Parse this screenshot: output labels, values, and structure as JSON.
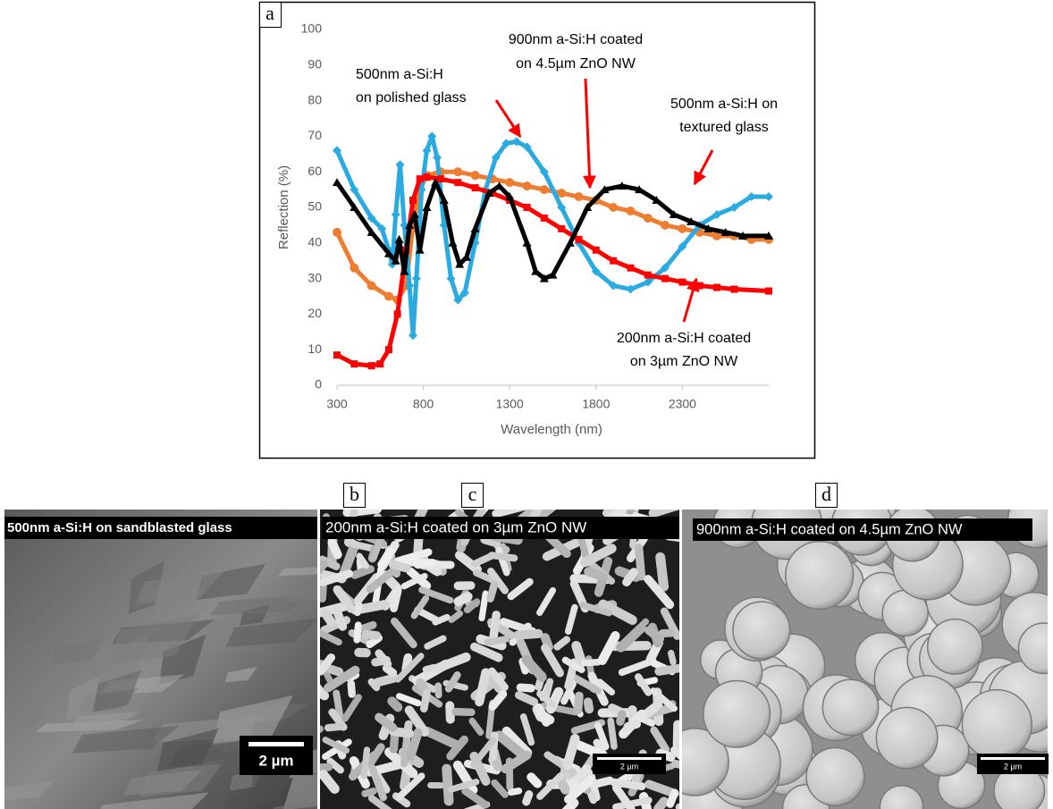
{
  "chart_data": {
    "type": "line",
    "panel_label": "a",
    "x_label": "Wavelength (nm)",
    "y_label": "Reflection (%)",
    "xlim": [
      300,
      2800
    ],
    "xticks": [
      300,
      800,
      1300,
      1800,
      2300
    ],
    "ylim": [
      0,
      100
    ],
    "yticks": [
      0,
      10,
      20,
      30,
      40,
      50,
      60,
      70,
      80,
      90,
      100
    ],
    "grid": false,
    "series": [
      {
        "color": "#ed7d31",
        "marker": "circle",
        "x": [
          300,
          400,
          500,
          600,
          650,
          700,
          740,
          780,
          820,
          900,
          1000,
          1100,
          1200,
          1300,
          1400,
          1500,
          1600,
          1700,
          1800,
          1900,
          2000,
          2100,
          2200,
          2300,
          2400,
          2500,
          2600,
          2700,
          2800
        ],
        "values": [
          43,
          33,
          28,
          25,
          24,
          28,
          45,
          55,
          59,
          60,
          60,
          59,
          58,
          57,
          56,
          55,
          54,
          53,
          52,
          50,
          49,
          47,
          45,
          44,
          43,
          42,
          42,
          41,
          41
        ]
      },
      {
        "color": "#29abe2",
        "marker": "diamond",
        "x": [
          300,
          400,
          500,
          560,
          600,
          620,
          640,
          665,
          690,
          720,
          740,
          760,
          790,
          820,
          850,
          880,
          920,
          960,
          1000,
          1040,
          1100,
          1160,
          1220,
          1280,
          1340,
          1400,
          1500,
          1600,
          1700,
          1800,
          1900,
          2000,
          2100,
          2200,
          2300,
          2400,
          2500,
          2600,
          2700,
          2800
        ],
        "values": [
          66,
          55,
          47,
          44,
          38,
          34,
          48,
          62,
          45,
          28,
          14,
          30,
          55,
          66,
          70,
          64,
          45,
          30,
          24,
          26,
          40,
          55,
          64,
          68,
          68.5,
          67,
          60,
          50,
          40,
          32,
          28,
          27,
          29,
          33,
          39,
          45,
          48,
          50,
          53,
          53
        ]
      },
      {
        "color": "#ff0000",
        "marker": "square",
        "x": [
          300,
          400,
          500,
          550,
          600,
          650,
          700,
          740,
          780,
          820,
          900,
          1000,
          1100,
          1200,
          1300,
          1400,
          1500,
          1600,
          1700,
          1800,
          1900,
          2000,
          2100,
          2200,
          2300,
          2400,
          2500,
          2600,
          2800
        ],
        "values": [
          8.5,
          6,
          5.5,
          6,
          10,
          20,
          38,
          52,
          58,
          58.5,
          58,
          57,
          55.5,
          54,
          52,
          50,
          47,
          44,
          41,
          38,
          35,
          33,
          31,
          30,
          29,
          28,
          27.5,
          27,
          26.5
        ]
      },
      {
        "color": "#000000",
        "marker": "triangle",
        "x": [
          300,
          400,
          500,
          600,
          640,
          660,
          690,
          720,
          750,
          780,
          820,
          870,
          920,
          970,
          1010,
          1050,
          1100,
          1180,
          1240,
          1300,
          1400,
          1450,
          1500,
          1550,
          1650,
          1750,
          1850,
          1950,
          2050,
          2150,
          2250,
          2350,
          2450,
          2550,
          2650,
          2800
        ],
        "values": [
          57,
          50,
          43,
          37,
          35,
          41,
          32,
          45,
          48,
          38,
          50,
          57,
          52,
          40,
          34,
          36,
          44,
          54,
          56,
          53,
          40,
          32,
          30,
          31,
          40,
          50,
          55,
          56,
          55,
          52,
          48,
          46,
          44,
          43,
          42,
          42
        ]
      }
    ],
    "annotations": [
      {
        "lines": [
          "500nm a-Si:H",
          "on polished glass"
        ]
      },
      {
        "lines": [
          "900nm a-Si:H coated",
          "on 4.5µm ZnO NW"
        ]
      },
      {
        "lines": [
          "500nm a-Si:H on",
          "textured glass"
        ]
      },
      {
        "lines": [
          "200nm a-Si:H coated",
          "on 3µm ZnO NW"
        ]
      }
    ]
  },
  "panels": [
    {
      "label": "b",
      "caption": "500nm a-Si:H on sandblasted glass",
      "scale_bar": "2 µm"
    },
    {
      "label": "c",
      "caption": "200nm a-Si:H coated on 3µm ZnO NW",
      "scale_bar": "2 µm"
    },
    {
      "label": "d",
      "caption": "900nm a-Si:H coated on 4.5µm ZnO NW",
      "scale_bar": "2 µm"
    }
  ]
}
